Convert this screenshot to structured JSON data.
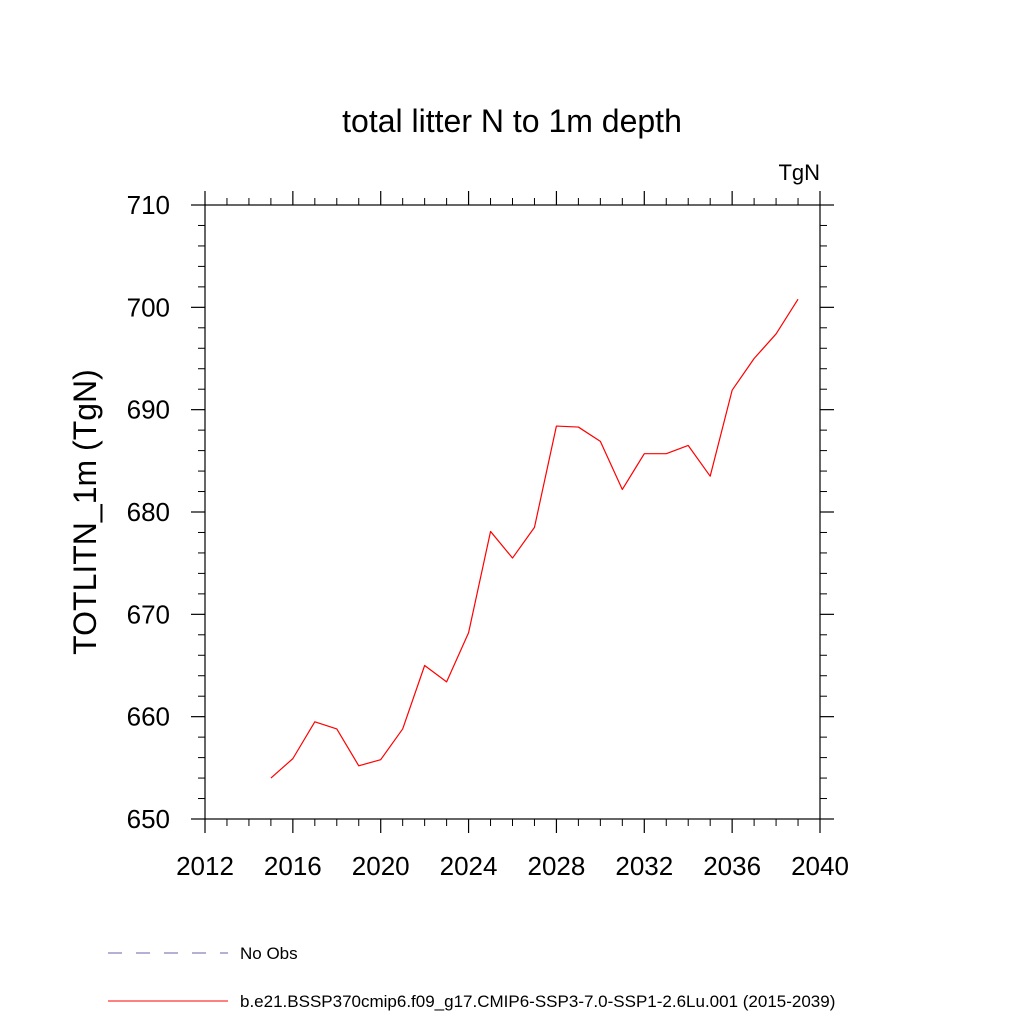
{
  "chart_data": {
    "type": "line",
    "title": "total litter N to 1m depth",
    "units_label": "TgN",
    "ylabel": "TOTLITN_1m  (TgN)",
    "xlabel": "",
    "xlim": [
      2012,
      2040
    ],
    "ylim": [
      650,
      710
    ],
    "x_ticks": [
      2012,
      2016,
      2020,
      2024,
      2028,
      2032,
      2036,
      2040
    ],
    "y_ticks": [
      650,
      660,
      670,
      680,
      690,
      700,
      710
    ],
    "grid": false,
    "legend_placement": "bottom-left",
    "series": [
      {
        "name": "b.e21.BSSP370cmip6.f09_g17.CMIP6-SSP3-7.0-SSP1-2.6Lu.001 (2015-2039)",
        "color": "#ff0000",
        "x": [
          2015,
          2016,
          2017,
          2018,
          2019,
          2020,
          2021,
          2022,
          2023,
          2024,
          2025,
          2026,
          2027,
          2028,
          2029,
          2030,
          2031,
          2032,
          2033,
          2034,
          2035,
          2036,
          2037,
          2038,
          2039
        ],
        "values": [
          654.0,
          655.9,
          659.5,
          658.8,
          655.2,
          655.8,
          658.8,
          665.0,
          663.4,
          668.2,
          678.1,
          675.5,
          678.5,
          688.4,
          688.3,
          686.9,
          682.2,
          685.7,
          685.7,
          686.5,
          683.5,
          691.9,
          695.0,
          697.4,
          700.8
        ]
      }
    ],
    "legend": [
      {
        "label": "No Obs",
        "color": "#7060a8",
        "style": "dashed"
      },
      {
        "label": "b.e21.BSSP370cmip6.f09_g17.CMIP6-SSP3-7.0-SSP1-2.6Lu.001 (2015-2039)",
        "color": "#ff0000",
        "style": "solid"
      }
    ]
  }
}
